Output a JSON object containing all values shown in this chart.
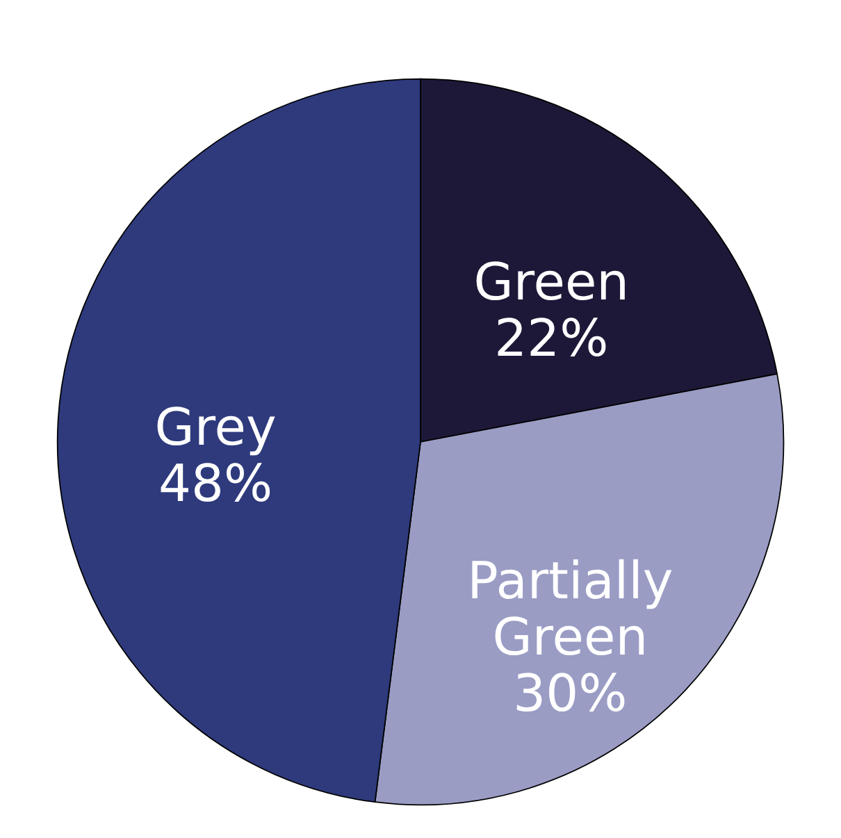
{
  "chart_data": {
    "type": "pie",
    "categories": [
      "Green",
      "Partially Green",
      "Grey"
    ],
    "values": [
      22,
      30,
      48
    ],
    "colors": [
      "#1e1838",
      "#9a9cc4",
      "#2e3a7c"
    ],
    "data_labels": true,
    "value_labels": [
      "22%",
      "30%",
      "48%"
    ],
    "legend": false
  }
}
